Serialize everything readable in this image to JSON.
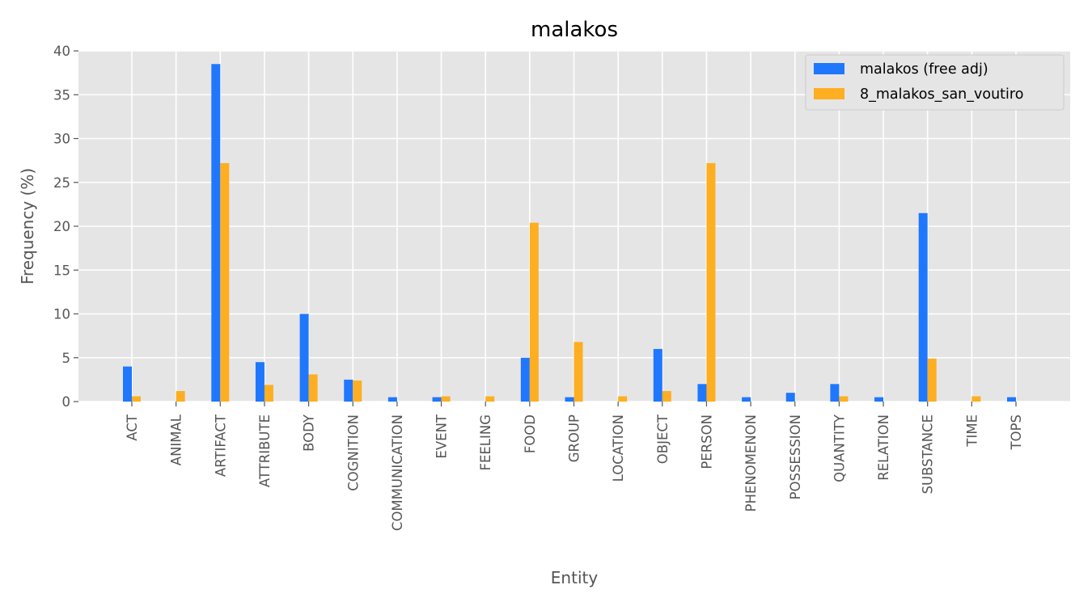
{
  "chart_data": {
    "type": "bar",
    "title": "malakos",
    "xlabel": "Entity",
    "ylabel": "Frequency (%)",
    "ylim": [
      0,
      40
    ],
    "yticks": [
      0,
      5,
      10,
      15,
      20,
      25,
      30,
      35,
      40
    ],
    "grid": true,
    "legend_position": "top-right",
    "categories": [
      "ACT",
      "ANIMAL",
      "ARTIFACT",
      "ATTRIBUTE",
      "BODY",
      "COGNITION",
      "COMMUNICATION",
      "EVENT",
      "FEELING",
      "FOOD",
      "GROUP",
      "LOCATION",
      "OBJECT",
      "PERSON",
      "PHENOMENON",
      "POSSESSION",
      "QUANTITY",
      "RELATION",
      "SUBSTANCE",
      "TIME",
      "TOPS"
    ],
    "series": [
      {
        "name": "malakos (free adj)",
        "color": "#1f77fd",
        "values": [
          4.0,
          0,
          38.5,
          4.5,
          10.0,
          2.5,
          0.5,
          0.5,
          0,
          5.0,
          0.5,
          0,
          6.0,
          2.0,
          0.5,
          1.0,
          2.0,
          0.5,
          21.5,
          0,
          0.5
        ]
      },
      {
        "name": "8_malakos_san_voutiro",
        "color": "#fdae21",
        "values": [
          0.6,
          1.2,
          27.2,
          1.9,
          3.1,
          2.4,
          0,
          0.6,
          0.6,
          20.4,
          6.8,
          0.6,
          1.2,
          27.2,
          0,
          0,
          0.6,
          0,
          4.9,
          0.6,
          0
        ]
      }
    ]
  }
}
